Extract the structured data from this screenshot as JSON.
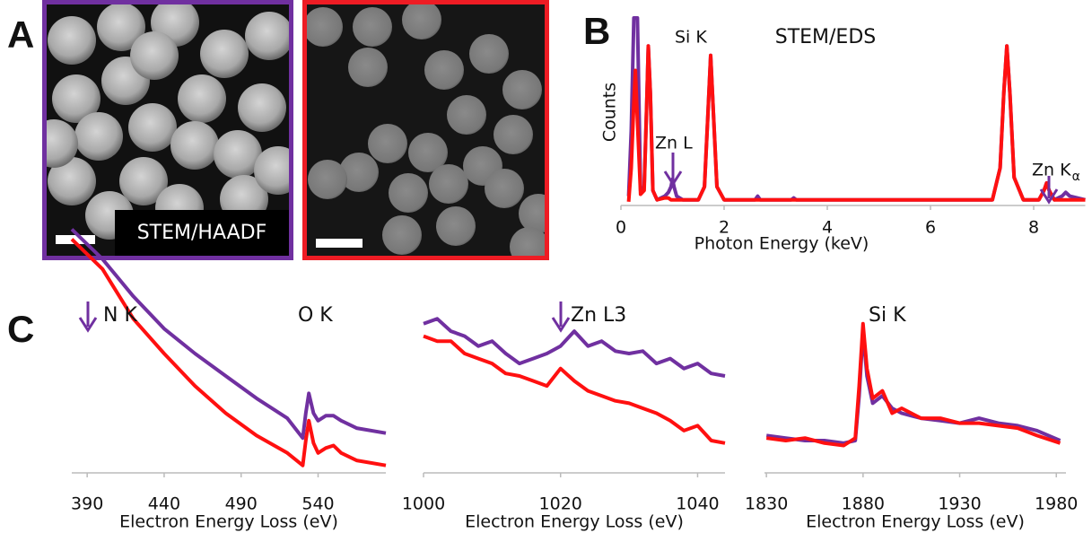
{
  "panel_labels": [
    "A",
    "B",
    "C"
  ],
  "images": [
    {
      "label": "STEM/HAADF",
      "color": "#7030a0"
    },
    {
      "color": "#ee1c24"
    }
  ],
  "chart_data": [
    {
      "type": "line",
      "title": "STEM/EDS",
      "xlabel": "Photon Energy (keV)",
      "ylabel": "Counts",
      "xlim": [
        0,
        9
      ],
      "xticks": [
        0,
        2,
        4,
        6,
        8
      ],
      "ylim": [
        0,
        100
      ],
      "annotations": [
        {
          "text": "Si K"
        },
        {
          "text": "Zn L"
        },
        {
          "text": "Zn K",
          "subscript": "α"
        }
      ],
      "x": [
        0.15,
        0.2,
        0.25,
        0.28,
        0.32,
        0.38,
        0.45,
        0.5,
        0.53,
        0.57,
        0.62,
        0.7,
        0.85,
        0.92,
        0.97,
        1.0,
        1.03,
        1.08,
        1.2,
        1.5,
        1.62,
        1.68,
        1.74,
        1.8,
        1.86,
        2.0,
        2.6,
        2.65,
        2.7,
        3.3,
        3.35,
        3.4,
        5,
        7.2,
        7.35,
        7.42,
        7.48,
        7.54,
        7.62,
        7.8,
        8.1,
        8.2,
        8.25,
        8.3,
        8.4,
        8.55,
        8.62,
        8.7,
        9
      ],
      "series": [
        {
          "color": "#7030a0",
          "values": [
            5,
            40,
            100,
            100,
            100,
            8,
            10,
            55,
            85,
            60,
            8,
            3,
            5,
            7,
            10,
            14,
            10,
            5,
            3,
            3,
            10,
            45,
            80,
            45,
            10,
            3,
            3,
            5,
            3,
            3,
            4,
            3,
            3,
            3,
            20,
            60,
            85,
            60,
            15,
            3,
            3,
            8,
            12,
            8,
            3,
            5,
            7,
            5,
            3
          ]
        },
        {
          "color": "#ff1010",
          "values": [
            2,
            20,
            55,
            72,
            45,
            6,
            8,
            55,
            85,
            60,
            8,
            3,
            4,
            4,
            3,
            3,
            3,
            3,
            3,
            3,
            10,
            45,
            80,
            45,
            10,
            3,
            3,
            3,
            3,
            3,
            3,
            3,
            3,
            3,
            20,
            60,
            85,
            60,
            15,
            3,
            3,
            8,
            12,
            8,
            3,
            3,
            3,
            3,
            3
          ]
        }
      ]
    },
    {
      "type": "line",
      "xlabel": "Electron Energy Loss (eV)",
      "xlim": [
        380,
        584
      ],
      "xticks": [
        390,
        440,
        490,
        540
      ],
      "ylim": [
        0,
        100
      ],
      "annotations": [
        {
          "text": "N K"
        },
        {
          "text": "O K"
        }
      ],
      "x": [
        380,
        400,
        420,
        440,
        460,
        480,
        500,
        520,
        530,
        532,
        534,
        537,
        540,
        545,
        550,
        555,
        565,
        584
      ],
      "series": [
        {
          "color": "#7030a0",
          "values": [
            98,
            86,
            71,
            58,
            48,
            39,
            30,
            22,
            14,
            24,
            32,
            24,
            21,
            23,
            23,
            21,
            18,
            16
          ]
        },
        {
          "color": "#ff1010",
          "values": [
            94,
            82,
            62,
            48,
            35,
            24,
            15,
            8,
            3,
            13,
            21,
            12,
            8,
            10,
            11,
            8,
            5,
            3
          ]
        }
      ]
    },
    {
      "type": "line",
      "xlabel": "Electron Energy Loss (eV)",
      "xlim": [
        1000,
        1044
      ],
      "xticks": [
        1000,
        1020,
        1040
      ],
      "ylim": [
        0,
        100
      ],
      "annotations": [
        {
          "text": "Zn L3"
        }
      ],
      "x": [
        1000,
        1002,
        1004,
        1006,
        1008,
        1010,
        1012,
        1014,
        1016,
        1018,
        1020,
        1022,
        1024,
        1026,
        1028,
        1030,
        1032,
        1034,
        1036,
        1038,
        1040,
        1042,
        1044
      ],
      "series": [
        {
          "color": "#7030a0",
          "values": [
            60,
            62,
            57,
            55,
            51,
            53,
            48,
            44,
            46,
            48,
            51,
            57,
            51,
            53,
            49,
            48,
            49,
            44,
            46,
            42,
            44,
            40,
            39
          ]
        },
        {
          "color": "#ff1010",
          "values": [
            55,
            53,
            53,
            48,
            46,
            44,
            40,
            39,
            37,
            35,
            42,
            37,
            33,
            31,
            29,
            28,
            26,
            24,
            21,
            17,
            19,
            13,
            12
          ]
        }
      ]
    },
    {
      "type": "line",
      "xlabel": "Electron Energy Loss (eV)",
      "xlim": [
        1829,
        1985
      ],
      "xticks": [
        1830,
        1880,
        1930,
        1980
      ],
      "ylim": [
        0,
        100
      ],
      "annotations": [
        {
          "text": "Si K"
        }
      ],
      "x": [
        1830,
        1840,
        1850,
        1860,
        1870,
        1876,
        1878,
        1880,
        1882,
        1885,
        1890,
        1895,
        1900,
        1910,
        1920,
        1930,
        1940,
        1950,
        1960,
        1970,
        1982
      ],
      "series": [
        {
          "color": "#7030a0",
          "values": [
            15,
            14,
            13,
            13,
            12,
            13,
            31,
            57,
            39,
            28,
            31,
            26,
            24,
            22,
            21,
            20,
            22,
            20,
            19,
            17,
            13
          ]
        },
        {
          "color": "#ff1010",
          "values": [
            14,
            13,
            14,
            12,
            11,
            14,
            35,
            60,
            42,
            30,
            33,
            24,
            26,
            22,
            22,
            20,
            20,
            19,
            18,
            15,
            12
          ]
        }
      ]
    }
  ]
}
